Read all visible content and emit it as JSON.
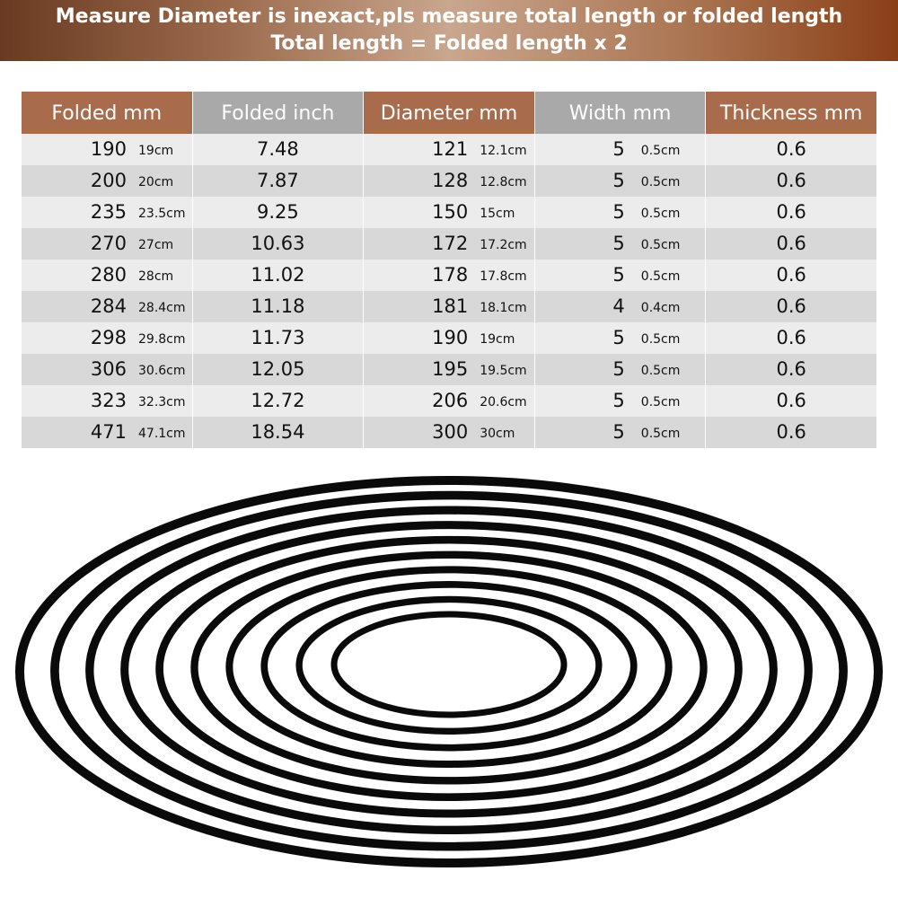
{
  "header": {
    "line1": "Measure Diameter is inexact,pls measure total length or folded length",
    "line2": "Total length = Folded length x 2"
  },
  "table": {
    "columns": [
      "Folded mm",
      "Folded inch",
      "Diameter mm",
      "Width mm",
      "Thickness mm"
    ],
    "rows": [
      [
        "190",
        "19cm",
        "7.48",
        "121",
        "12.1cm",
        "5",
        "0.5cm",
        "0.6"
      ],
      [
        "200",
        "20cm",
        "7.87",
        "128",
        "12.8cm",
        "5",
        "0.5cm",
        "0.6"
      ],
      [
        "235",
        "23.5cm",
        "9.25",
        "150",
        "15cm",
        "5",
        "0.5cm",
        "0.6"
      ],
      [
        "270",
        "27cm",
        "10.63",
        "172",
        "17.2cm",
        "5",
        "0.5cm",
        "0.6"
      ],
      [
        "280",
        "28cm",
        "11.02",
        "178",
        "17.8cm",
        "5",
        "0.5cm",
        "0.6"
      ],
      [
        "284",
        "28.4cm",
        "11.18",
        "181",
        "18.1cm",
        "4",
        "0.4cm",
        "0.6"
      ],
      [
        "298",
        "29.8cm",
        "11.73",
        "190",
        "19cm",
        "5",
        "0.5cm",
        "0.6"
      ],
      [
        "306",
        "30.6cm",
        "12.05",
        "195",
        "19.5cm",
        "5",
        "0.5cm",
        "0.6"
      ],
      [
        "323",
        "32.3cm",
        "12.72",
        "206",
        "20.6cm",
        "5",
        "0.5cm",
        "0.6"
      ],
      [
        "471",
        "47.1cm",
        "18.54",
        "300",
        "30cm",
        "5",
        "0.5cm",
        "0.6"
      ]
    ]
  }
}
